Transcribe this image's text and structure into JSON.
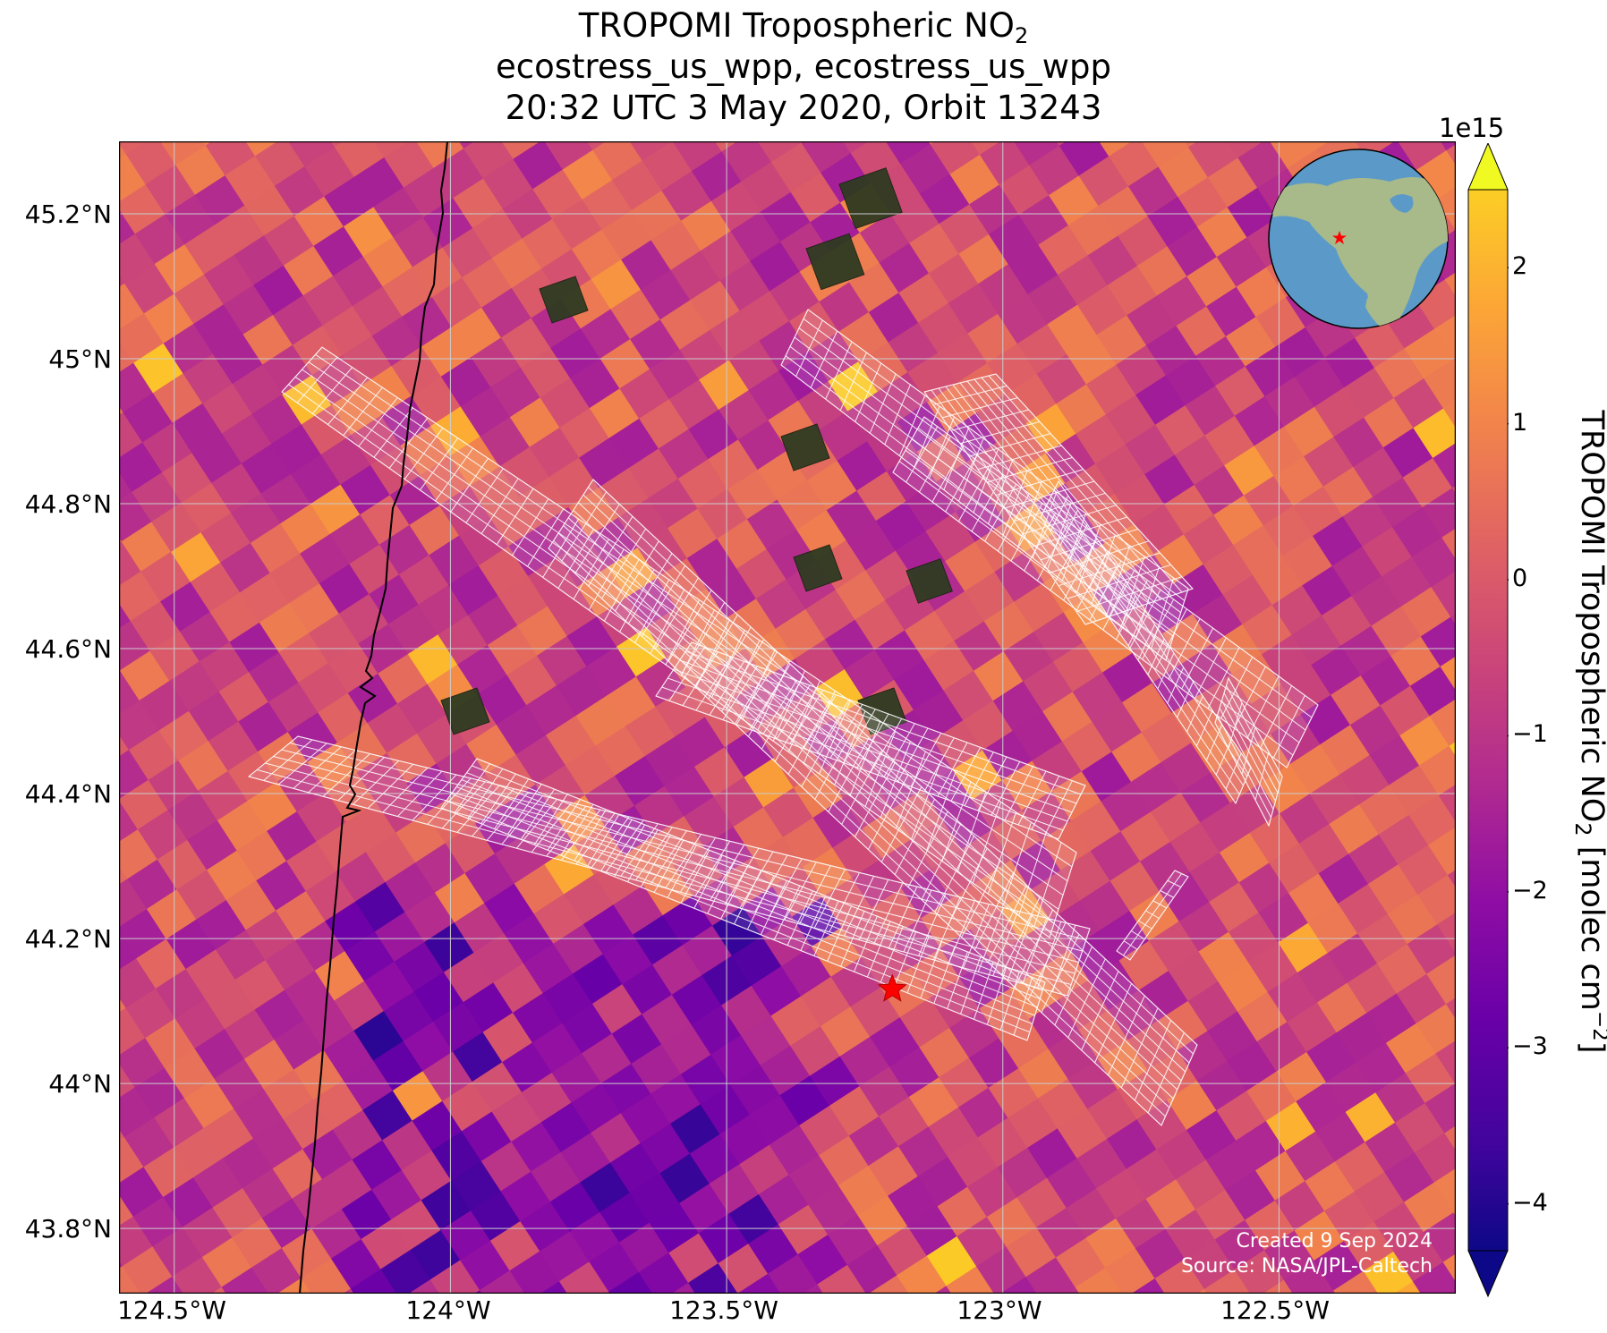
{
  "title": {
    "line1_prefix": "TROPOMI Tropospheric NO",
    "line1_sub": "2",
    "line2": "ecostress_us_wpp, ecostress_us_wpp",
    "line3": "20:32 UTC 3 May 2020, Orbit 13243"
  },
  "map": {
    "lon_range": [
      -124.6,
      -122.18
    ],
    "lat_range": [
      43.71,
      45.3
    ],
    "lat_ticks": [
      {
        "value": 45.2,
        "label": "45.2°N"
      },
      {
        "value": 45.0,
        "label": "45°N"
      },
      {
        "value": 44.8,
        "label": "44.8°N"
      },
      {
        "value": 44.6,
        "label": "44.6°N"
      },
      {
        "value": 44.4,
        "label": "44.4°N"
      },
      {
        "value": 44.2,
        "label": "44.2°N"
      },
      {
        "value": 44.0,
        "label": "44°N"
      },
      {
        "value": 43.8,
        "label": "43.8°N"
      }
    ],
    "lon_ticks": [
      {
        "value": -124.5,
        "label": "124.5°W"
      },
      {
        "value": -124.0,
        "label": "124°W"
      },
      {
        "value": -123.5,
        "label": "123.5°W"
      },
      {
        "value": -123.0,
        "label": "123°W"
      },
      {
        "value": -122.5,
        "label": "122.5°W"
      }
    ],
    "marker": {
      "lon": -123.2,
      "lat": 44.13,
      "symbol": "star",
      "color": "#ff0000"
    },
    "coastline_color": "#000000",
    "gridline_color": "#cccccc",
    "footprint_color": "#ffffff",
    "globe_inset": {
      "ocean_color": "#5b9ac8",
      "land_color": "#a8b98a",
      "marker_color": "#ff0000"
    }
  },
  "colorbar": {
    "colormap": "plasma",
    "range": [
      -4.3,
      2.5
    ],
    "exponent_label": "1e15",
    "ticks": [
      {
        "value": 2,
        "label": "2"
      },
      {
        "value": 1,
        "label": "1"
      },
      {
        "value": 0,
        "label": "0"
      },
      {
        "value": -1,
        "label": "−1"
      },
      {
        "value": -2,
        "label": "−2"
      },
      {
        "value": -3,
        "label": "−3"
      },
      {
        "value": -4,
        "label": "−4"
      }
    ],
    "label_prefix": "TROPOMI Tropospheric NO",
    "label_sub": "2",
    "label_suffix": " [molec cm",
    "label_sup": "−2",
    "label_end": "]",
    "extend": "both"
  },
  "credit": {
    "created": "Created 9 Sep 2024",
    "source": "Source: NASA/JPL-Caltech"
  }
}
